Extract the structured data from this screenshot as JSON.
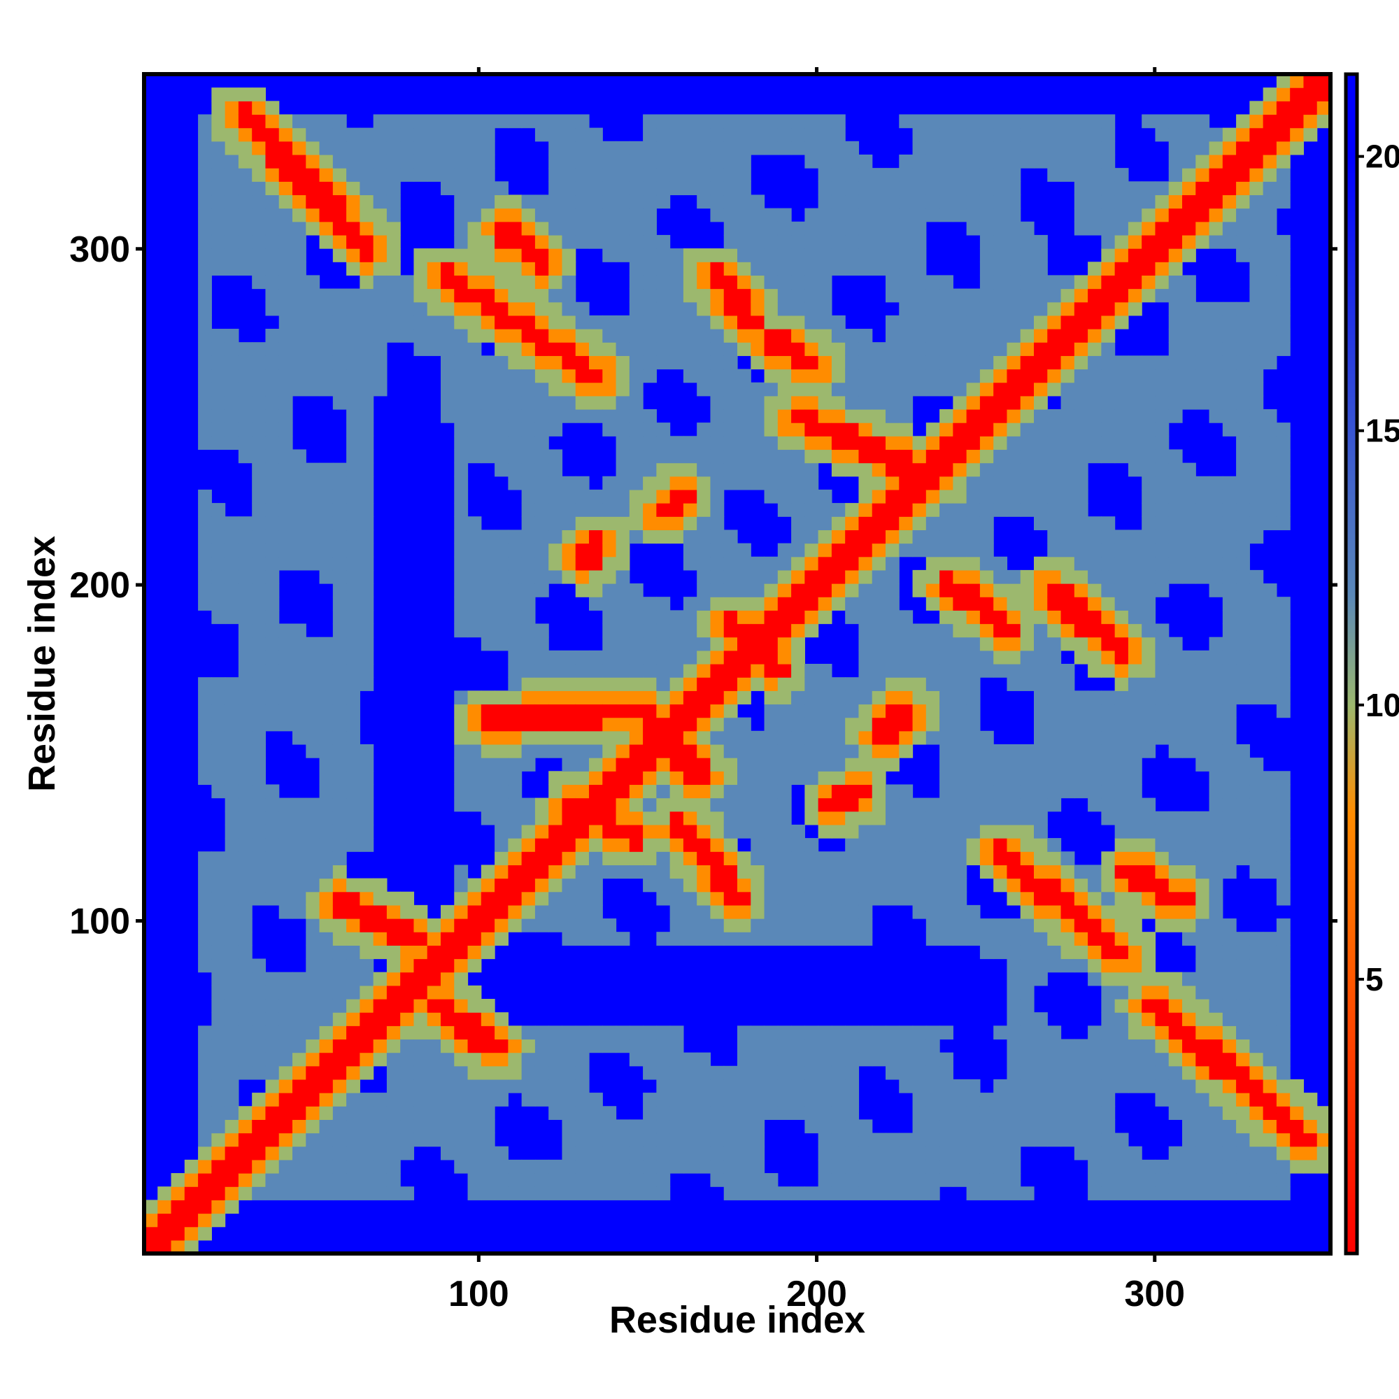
{
  "chart_data": {
    "type": "heatmap",
    "title": "",
    "xlabel": "Residue index",
    "ylabel": "Residue index",
    "xlim": [
      1,
      352
    ],
    "ylim": [
      1,
      352
    ],
    "x_ticks": [
      100,
      200,
      300
    ],
    "y_ticks": [
      100,
      200,
      300
    ],
    "x_tick_labels": [
      "100",
      "200",
      "300"
    ],
    "y_tick_labels": [
      "100",
      "200",
      "300"
    ],
    "colorbar": {
      "range": [
        0,
        21.5
      ],
      "ticks": [
        5,
        10,
        15,
        20
      ],
      "tick_labels": [
        "5",
        "10",
        "15",
        "20"
      ],
      "colors": [
        "#ff0000",
        "#ff8c00",
        "#9cb86e",
        "#5a88b8",
        "#0000ff"
      ],
      "stops": [
        0,
        8,
        10,
        12,
        20
      ]
    },
    "background_color": "#0000ff",
    "contact_color": "#ff0000",
    "near_color": "#ff8c00",
    "mid_color": "#5a88b8",
    "diagonal": {
      "from": 1,
      "to": 352
    },
    "off_diagonal_contacts": [
      {
        "x1": 30,
        "y1": 340,
        "x2": 68,
        "y2": 300
      },
      {
        "x1": 90,
        "y1": 292,
        "x2": 135,
        "y2": 262
      },
      {
        "x1": 108,
        "y1": 305,
        "x2": 118,
        "y2": 296
      },
      {
        "x1": 170,
        "y1": 292,
        "x2": 180,
        "y2": 280
      },
      {
        "x1": 188,
        "y1": 272,
        "x2": 198,
        "y2": 266
      },
      {
        "x1": 195,
        "y1": 250,
        "x2": 235,
        "y2": 232
      },
      {
        "x1": 132,
        "y1": 208,
        "x2": 135,
        "y2": 212
      },
      {
        "x1": 155,
        "y1": 222,
        "x2": 160,
        "y2": 226
      },
      {
        "x1": 103,
        "y1": 160,
        "x2": 140,
        "y2": 162
      },
      {
        "x1": 148,
        "y1": 162,
        "x2": 165,
        "y2": 144
      },
      {
        "x1": 128,
        "y1": 135,
        "x2": 145,
        "y2": 125
      },
      {
        "x1": 160,
        "y1": 128,
        "x2": 176,
        "y2": 108
      },
      {
        "x1": 175,
        "y1": 188,
        "x2": 188,
        "y2": 176
      },
      {
        "x1": 205,
        "y1": 135,
        "x2": 212,
        "y2": 138
      },
      {
        "x1": 220,
        "y1": 156,
        "x2": 226,
        "y2": 162
      },
      {
        "x1": 240,
        "y1": 200,
        "x2": 256,
        "y2": 188
      },
      {
        "x1": 270,
        "y1": 198,
        "x2": 290,
        "y2": 180
      },
      {
        "x1": 255,
        "y1": 120,
        "x2": 290,
        "y2": 90
      },
      {
        "x1": 293,
        "y1": 115,
        "x2": 307,
        "y2": 106
      },
      {
        "x1": 300,
        "y1": 75,
        "x2": 345,
        "y2": 35
      },
      {
        "x1": 88,
        "y1": 75,
        "x2": 105,
        "y2": 62
      },
      {
        "x1": 60,
        "y1": 105,
        "x2": 80,
        "y2": 95
      }
    ],
    "void_regions": [
      {
        "x1": 1,
        "y1": 1,
        "x2": 15,
        "y2": 352
      },
      {
        "x1": 1,
        "y1": 1,
        "x2": 352,
        "y2": 15
      },
      {
        "x1": 340,
        "y1": 1,
        "x2": 352,
        "y2": 352
      },
      {
        "x1": 68,
        "y1": 85,
        "x2": 90,
        "y2": 255
      },
      {
        "x1": 95,
        "y1": 78,
        "x2": 250,
        "y2": 92
      },
      {
        "x1": 68,
        "y1": 297,
        "x2": 88,
        "y2": 305
      },
      {
        "x1": 268,
        "y1": 294,
        "x2": 284,
        "y2": 303
      },
      {
        "x1": 294,
        "y1": 70,
        "x2": 300,
        "y2": 86
      },
      {
        "x1": 350,
        "y1": 200,
        "x2": 352,
        "y2": 260
      }
    ]
  }
}
